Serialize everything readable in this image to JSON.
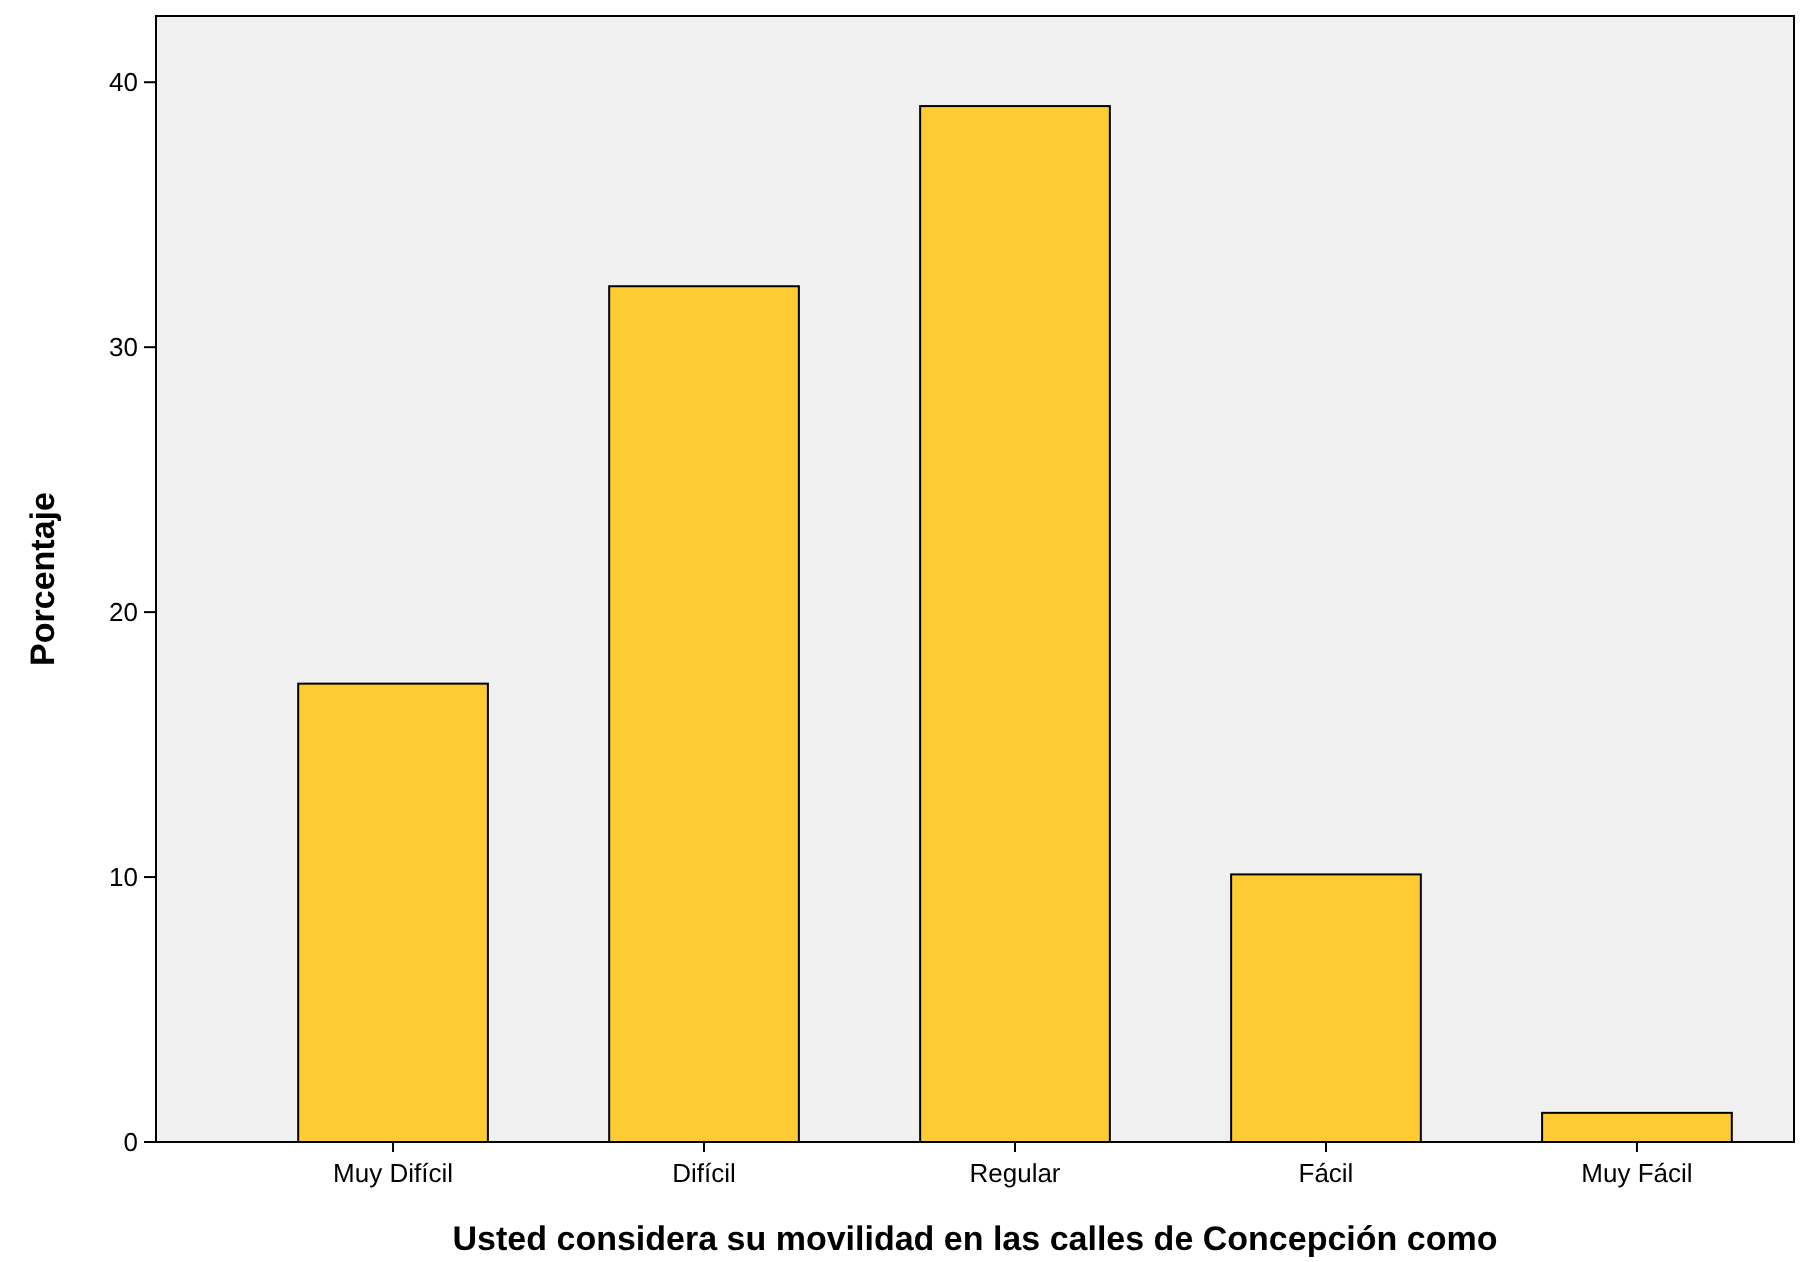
{
  "chart_data": {
    "type": "bar",
    "xlabel": "Usted considera su movilidad en las calles de Concepción como",
    "ylabel": "Porcentaje",
    "categories": [
      "Muy Difícil",
      "Difícil",
      "Regular",
      "Fácil",
      "Muy Fácil"
    ],
    "values": [
      17.3,
      32.3,
      39.1,
      10.1,
      1.1
    ],
    "color": "#fecb33",
    "ylim": [
      0,
      42.5
    ],
    "yticks": [
      0,
      10,
      20,
      30,
      40
    ],
    "grid": false
  }
}
